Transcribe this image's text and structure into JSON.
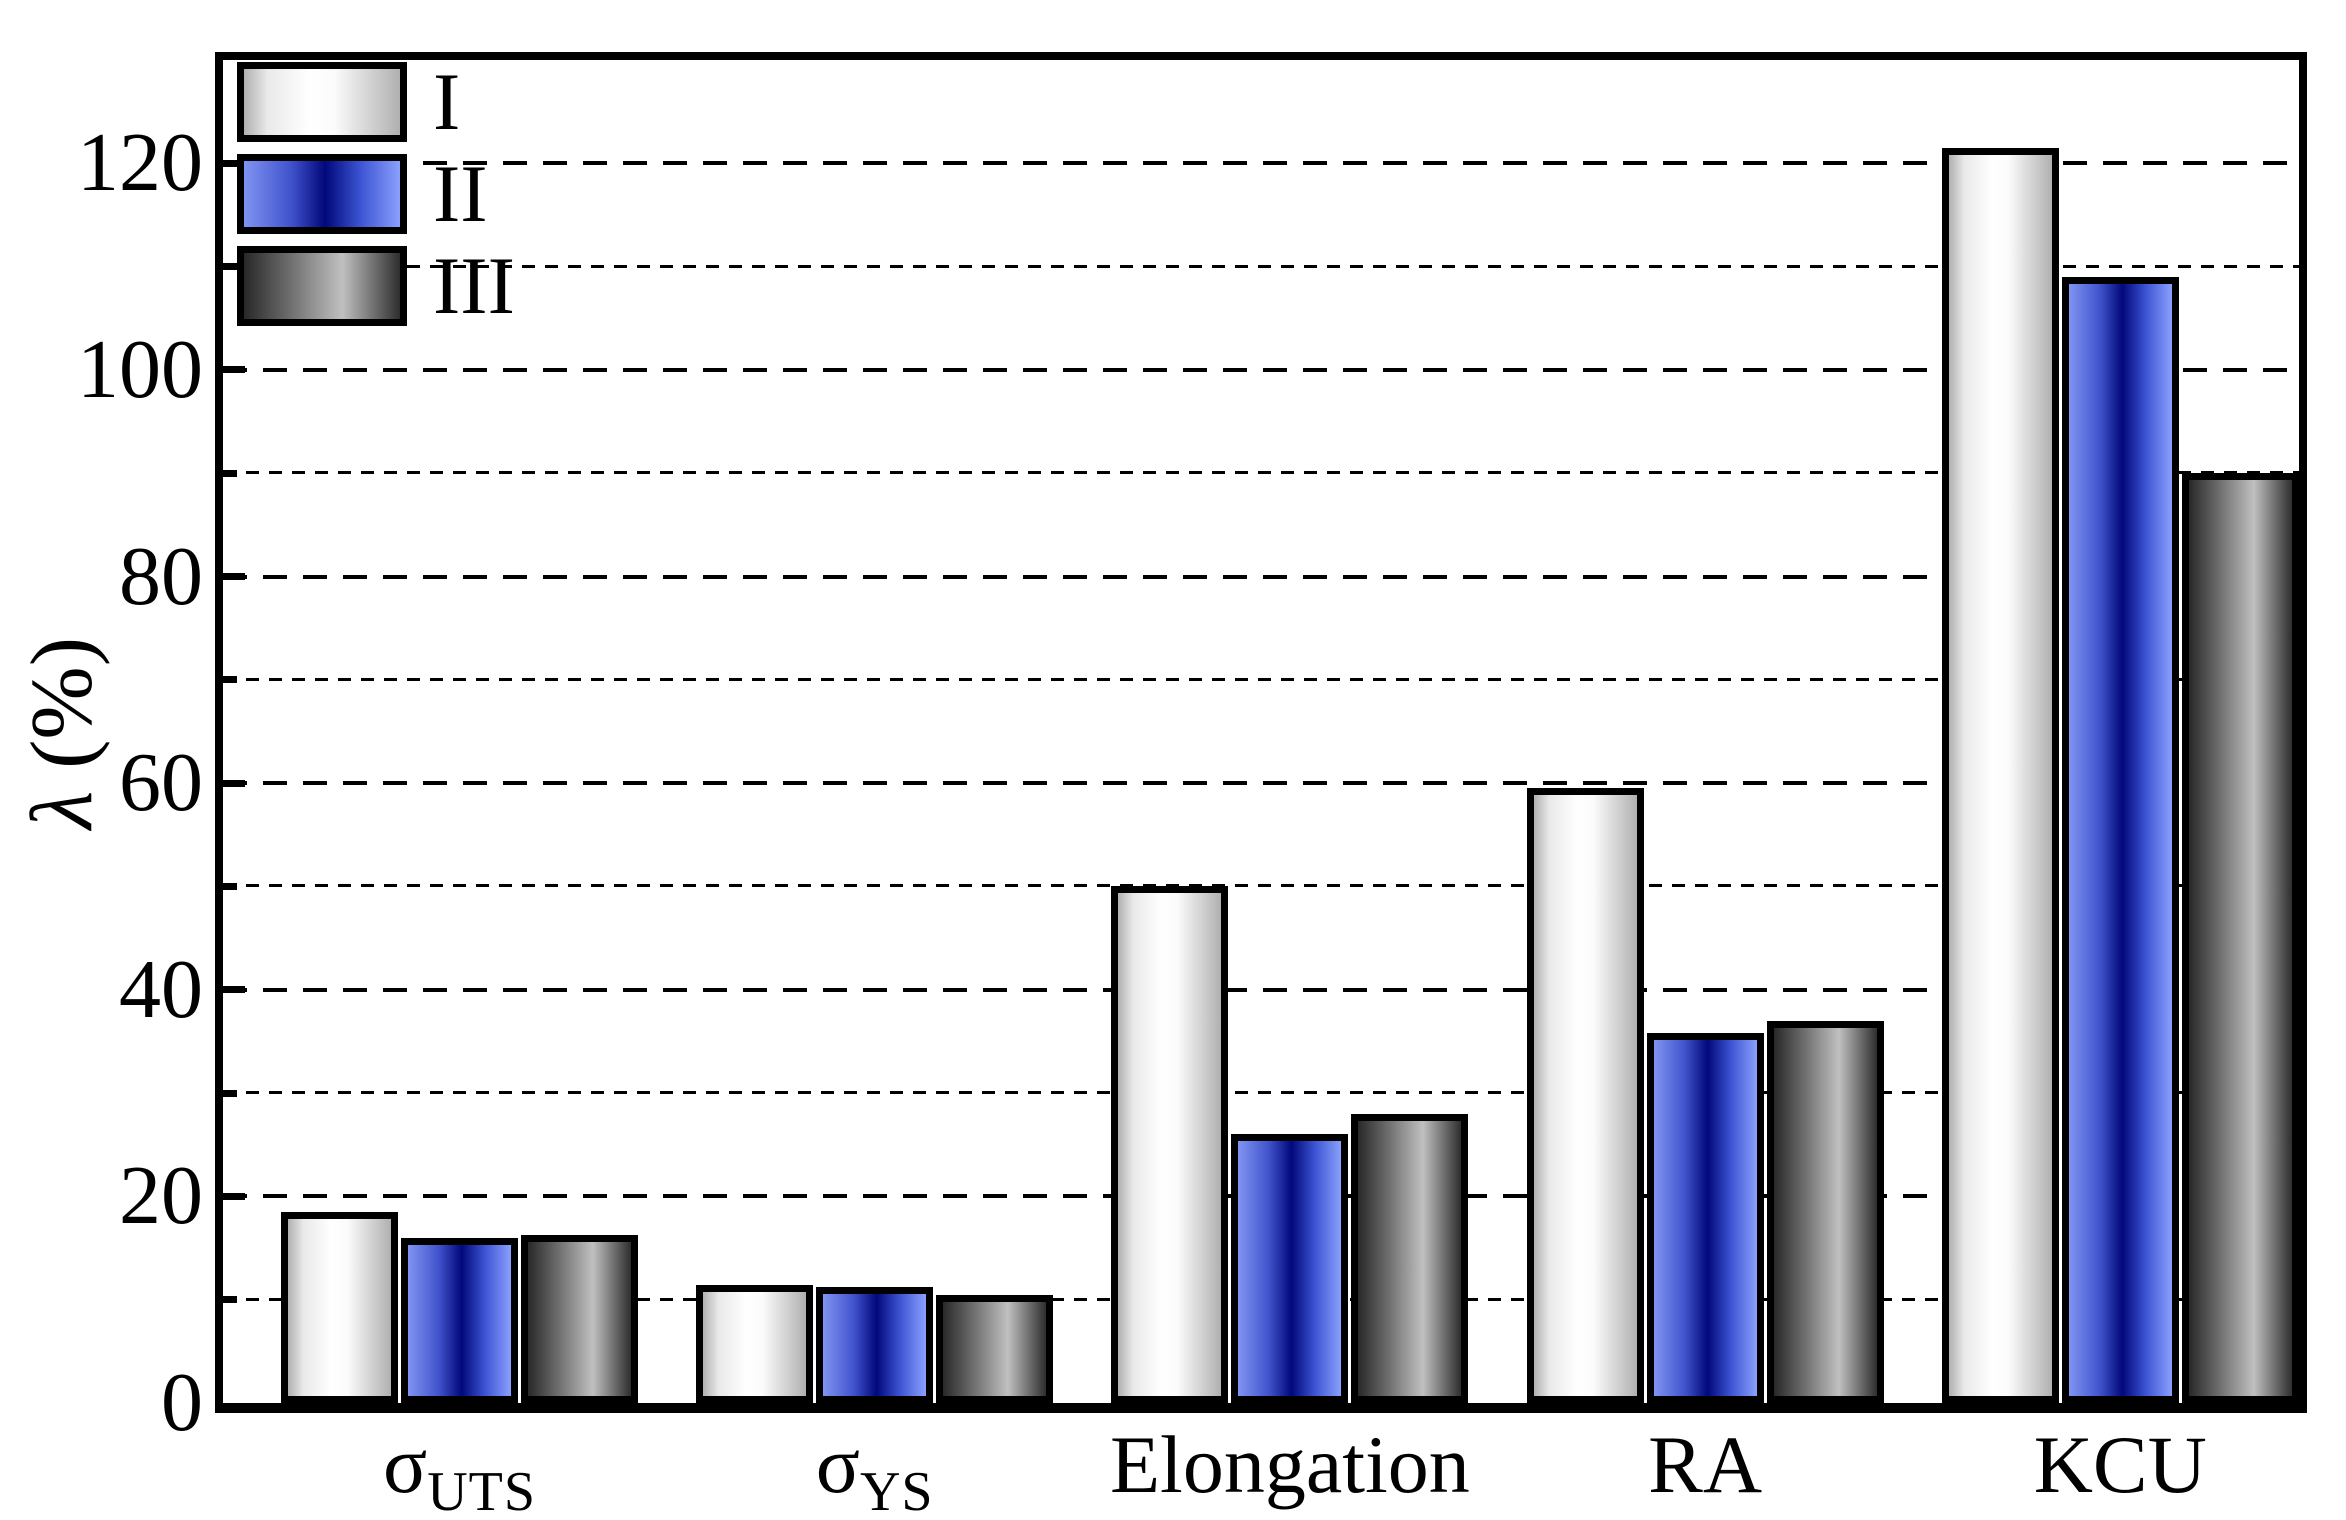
{
  "chart_data": {
    "type": "bar",
    "title": "",
    "ylabel": "λ (%)",
    "ylabel_symbol": "λ",
    "ylabel_unit": " (%)",
    "ylim": [
      0,
      130
    ],
    "y_major_ticks": [
      0,
      20,
      40,
      60,
      80,
      100,
      120
    ],
    "y_minor_ticks": [
      10,
      30,
      50,
      70,
      90,
      110
    ],
    "grid": "horizontal dashed lines every 10, on",
    "legend_position": "top-left inside plot",
    "frame": "full box frame, ticks pointing inward",
    "categories": [
      {
        "text": "σ_UTS",
        "base": "σ",
        "sub": "UTS"
      },
      {
        "text": "σ_YS",
        "base": "σ",
        "sub": "YS"
      },
      {
        "text": "Elongation",
        "base": "Elongation",
        "sub": ""
      },
      {
        "text": "RA",
        "base": "RA",
        "sub": ""
      },
      {
        "text": "KCU",
        "base": "KCU",
        "sub": ""
      }
    ],
    "series": [
      {
        "name": "I",
        "values": [
          18.5,
          11.4,
          50,
          59.5,
          121.5
        ],
        "fill_stops": "#b0b0b0 0%, #e9e9e9 15%, #ffffff 42%, #fbfbfb 58%, #b0b0b0 100%",
        "edge_color": "#000000"
      },
      {
        "name": "II",
        "values": [
          16,
          11.2,
          26,
          35.8,
          109
        ],
        "fill_stops": "#8094f2 0%, #4153cc 30%, #01087a 52%, #3d55d4 75%, #8ba0fd 100%",
        "edge_color": "#000000"
      },
      {
        "name": "III",
        "values": [
          16.3,
          10.5,
          28,
          37,
          90
        ],
        "fill_stops": "#282828 0%, #6f6f6f 30%, #c0c0c0 63%, #2e2e2e 100%",
        "edge_color": "#000000"
      }
    ],
    "colors": {
      "axis": "#000000",
      "gridline": "#000000",
      "background": "#ffffff",
      "series_II_dark": "#01087a",
      "series_II_light": "#8ba0fd"
    }
  }
}
